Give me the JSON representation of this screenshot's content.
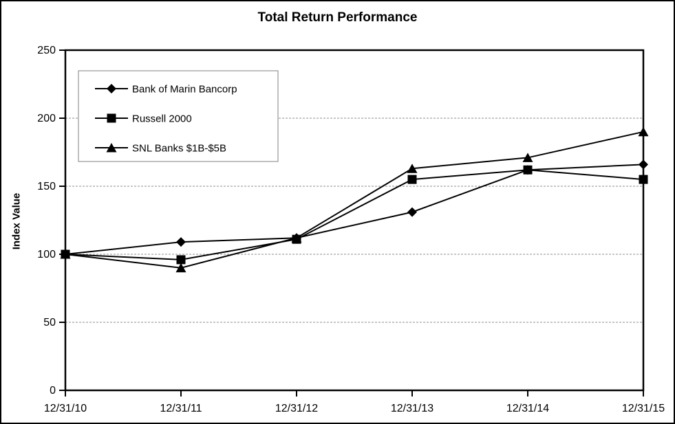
{
  "chart_data": {
    "type": "line",
    "title": "Total Return Performance",
    "xlabel": "",
    "ylabel": "Index Value",
    "x": [
      "12/31/10",
      "12/31/11",
      "12/31/12",
      "12/31/13",
      "12/31/14",
      "12/31/15"
    ],
    "ylim": [
      0,
      250
    ],
    "yticks": [
      0,
      50,
      100,
      150,
      200,
      250
    ],
    "grid": "horizontal-dashed",
    "legend_position": "top-left-inside",
    "series": [
      {
        "name": "Bank of Marin Bancorp",
        "marker": "diamond",
        "color": "#000000",
        "values": [
          100,
          109,
          112,
          131,
          162,
          166
        ]
      },
      {
        "name": "Russell 2000",
        "marker": "square",
        "color": "#000000",
        "values": [
          100,
          96,
          111,
          155,
          162,
          155
        ]
      },
      {
        "name": "SNL Banks $1B-$5B",
        "marker": "triangle",
        "color": "#000000",
        "values": [
          100,
          90,
          112,
          163,
          171,
          190
        ]
      }
    ],
    "colors": {
      "line": "#000000",
      "grid": "#8c8c8c",
      "legend_border": "#808080",
      "background": "#ffffff",
      "text": "#000000"
    }
  }
}
